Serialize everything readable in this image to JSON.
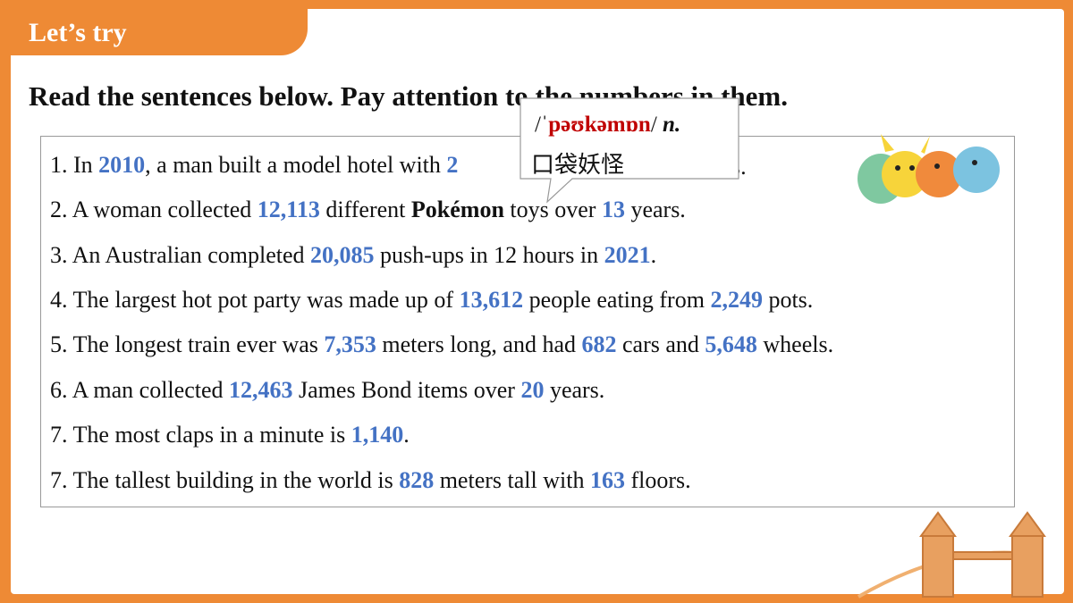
{
  "header": {
    "label": "Let’s try"
  },
  "instruction": "Read the sentences below. Pay attention to the numbers in them.",
  "sentences": [
    {
      "segments": [
        {
          "text": "1. In ",
          "style": "plain"
        },
        {
          "text": "2010",
          "style": "number"
        },
        {
          "text": ", a man built a model hotel with ",
          "style": "plain"
        },
        {
          "text": "2",
          "style": "number"
        }
      ],
      "tail": "s."
    },
    {
      "segments": [
        {
          "text": "2. A woman collected ",
          "style": "plain"
        },
        {
          "text": "12,113",
          "style": "number"
        },
        {
          "text": " different ",
          "style": "plain"
        },
        {
          "text": "Pokémon",
          "style": "bold"
        },
        {
          "text": " toys over ",
          "style": "plain"
        },
        {
          "text": "13",
          "style": "number"
        },
        {
          "text": " years.",
          "style": "plain"
        }
      ]
    },
    {
      "segments": [
        {
          "text": "3. An Australian completed ",
          "style": "plain"
        },
        {
          "text": "20,085",
          "style": "number"
        },
        {
          "text": " push-ups in 12 hours in ",
          "style": "plain"
        },
        {
          "text": "2021",
          "style": "number"
        },
        {
          "text": ".",
          "style": "plain"
        }
      ]
    },
    {
      "segments": [
        {
          "text": "4. The largest hot pot party was made up of ",
          "style": "plain"
        },
        {
          "text": "13,612",
          "style": "number"
        },
        {
          "text": " people eating from ",
          "style": "plain"
        },
        {
          "text": "2,249",
          "style": "number"
        },
        {
          "text": " pots.",
          "style": "plain"
        }
      ]
    },
    {
      "segments": [
        {
          "text": "5. The longest train ever was ",
          "style": "plain"
        },
        {
          "text": "7,353",
          "style": "number"
        },
        {
          "text": " meters long, and had ",
          "style": "plain"
        },
        {
          "text": "682",
          "style": "number"
        },
        {
          "text": " cars and ",
          "style": "plain"
        },
        {
          "text": "5,648",
          "style": "number"
        },
        {
          "text": " wheels.",
          "style": "plain"
        }
      ]
    },
    {
      "segments": [
        {
          "text": "6. A man collected ",
          "style": "plain"
        },
        {
          "text": "12,463",
          "style": "number"
        },
        {
          "text": " James Bond items over ",
          "style": "plain"
        },
        {
          "text": "20",
          "style": "number"
        },
        {
          "text": " years.",
          "style": "plain"
        }
      ]
    },
    {
      "segments": [
        {
          "text": "7. The most claps in a minute is ",
          "style": "plain"
        },
        {
          "text": "1,140",
          "style": "number"
        },
        {
          "text": ".",
          "style": "plain"
        }
      ]
    },
    {
      "segments": [
        {
          "text": "7. The tallest building in the world is ",
          "style": "plain"
        },
        {
          "text": "828",
          "style": "number"
        },
        {
          "text": " meters tall with ",
          "style": "plain"
        },
        {
          "text": "163",
          "style": "number"
        },
        {
          "text": " floors.",
          "style": "plain"
        }
      ]
    }
  ],
  "callout": {
    "phonetic_open": "/ˈ",
    "phonetic": "pəʊkəmɒn",
    "phonetic_close": "/ ",
    "pos": "n.",
    "meaning": "口袋妖怪"
  }
}
